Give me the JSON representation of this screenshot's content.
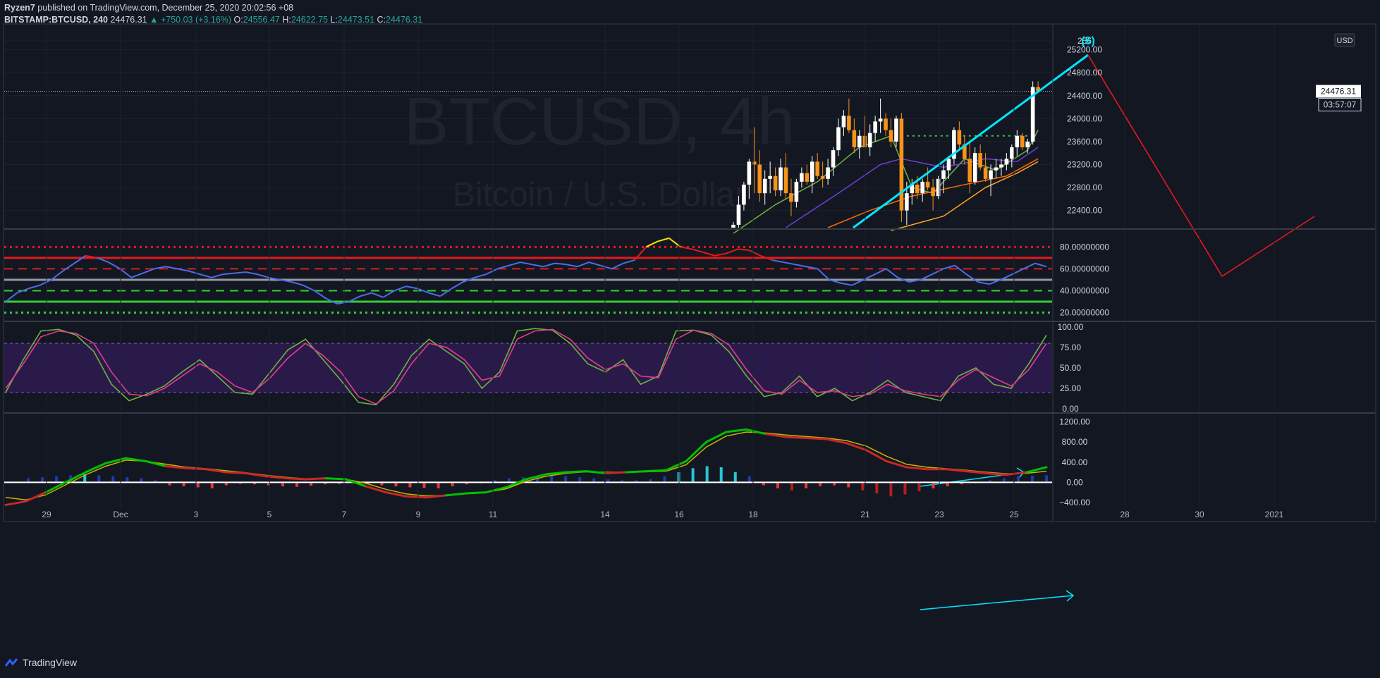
{
  "header": {
    "publisher": "Ryzen7",
    "published_text": "published on TradingView.com, December 25, 2020 20:02:56 +08",
    "symbol": "BITSTAMP:BTCUSD, 240",
    "last": "24476.31",
    "change": "▲ +750.03 (+3.16%)",
    "o_label": "O:",
    "o": "24556.47",
    "h_label": "H:",
    "h": "24622.75",
    "l_label": "L:",
    "l": "24473.51",
    "c_label": "C:",
    "c": "24476.31"
  },
  "watermark": {
    "symbol": "BTCUSD, 4h",
    "name": "Bitcoin / U.S. Dollar"
  },
  "footer": {
    "brand": "TradingView"
  },
  "colors": {
    "background": "#131722",
    "grid": "#1e222d",
    "bull_candle": "#ffffff",
    "bear_candle": "#f7931a",
    "wave_line": "#00e5ff",
    "projection": "#e31a1c",
    "rsi_line": "#4a6ee8",
    "stoch_k": "#6db33f",
    "stoch_d": "#e23c8e",
    "macd_line": "#00c000",
    "signal_line": "#c8b400"
  },
  "x_axis": {
    "labels": [
      "29",
      "Dec",
      "3",
      "5",
      "7",
      "9",
      "11",
      "14",
      "16",
      "18",
      "21",
      "23",
      "25",
      "28",
      "30",
      "2021"
    ]
  },
  "chart_data": [
    {
      "type": "candlestick",
      "title": "BTCUSD, 4h",
      "ylim": [
        22100,
        25650
      ],
      "price_scale_currency": "USD",
      "y_ticks": [
        "256",
        "25200.00",
        "24800.00",
        "24400.00",
        "24000.00",
        "23600.00",
        "23200.00",
        "22800.00",
        "22400.00"
      ],
      "last_price_label": "24476.31",
      "countdown_label": "03:57:07",
      "wave_label": "(5)",
      "candles": [
        [
          22100,
          22200,
          21800,
          22150
        ],
        [
          22150,
          22650,
          22100,
          22500
        ],
        [
          22500,
          22900,
          22400,
          22850
        ],
        [
          22850,
          23300,
          22600,
          23250
        ],
        [
          23250,
          23850,
          22700,
          23200
        ],
        [
          23200,
          23450,
          22550,
          22700
        ],
        [
          22700,
          23100,
          22500,
          22950
        ],
        [
          22950,
          23250,
          22700,
          23000
        ],
        [
          23000,
          23150,
          22650,
          22750
        ],
        [
          22750,
          23300,
          22650,
          23150
        ],
        [
          23150,
          23400,
          22600,
          22700
        ],
        [
          22700,
          22950,
          22300,
          22550
        ],
        [
          22550,
          22950,
          22450,
          22900
        ],
        [
          22900,
          23150,
          22800,
          23050
        ],
        [
          23050,
          23200,
          22850,
          22900
        ],
        [
          22900,
          23350,
          22700,
          23250
        ],
        [
          23250,
          23400,
          22950,
          23000
        ],
        [
          23000,
          23250,
          22800,
          22950
        ],
        [
          22950,
          23300,
          22850,
          23150
        ],
        [
          23150,
          23500,
          23000,
          23450
        ],
        [
          23450,
          24000,
          23350,
          23850
        ],
        [
          23850,
          24150,
          23700,
          24050
        ],
        [
          24050,
          24350,
          23750,
          23800
        ],
        [
          23800,
          24000,
          23400,
          23500
        ],
        [
          23500,
          23800,
          23300,
          23700
        ],
        [
          23700,
          24050,
          23500,
          23500
        ],
        [
          23500,
          23900,
          23350,
          23750
        ],
        [
          23750,
          24050,
          23600,
          23950
        ],
        [
          23950,
          24350,
          23750,
          24000
        ],
        [
          24000,
          24100,
          23700,
          23800
        ],
        [
          23800,
          24000,
          23500,
          23600
        ],
        [
          23600,
          24050,
          23500,
          24000
        ],
        [
          24000,
          24100,
          22200,
          22400
        ],
        [
          22400,
          22900,
          22150,
          22700
        ],
        [
          22700,
          22950,
          22500,
          22850
        ],
        [
          22850,
          23000,
          22600,
          22700
        ],
        [
          22700,
          22950,
          22550,
          22900
        ],
        [
          22900,
          23150,
          22750,
          22800
        ],
        [
          22800,
          22950,
          22400,
          22650
        ],
        [
          22650,
          23000,
          22600,
          22950
        ],
        [
          22950,
          23200,
          22700,
          23100
        ],
        [
          23100,
          23350,
          22950,
          23300
        ],
        [
          23300,
          23850,
          23200,
          23800
        ],
        [
          23800,
          23950,
          23450,
          23550
        ],
        [
          23550,
          23700,
          23200,
          23300
        ],
        [
          23300,
          23600,
          22700,
          22900
        ],
        [
          22900,
          23500,
          22850,
          23400
        ],
        [
          23400,
          23550,
          23100,
          23150
        ],
        [
          23150,
          23400,
          22900,
          22950
        ],
        [
          22950,
          23200,
          22650,
          23100
        ],
        [
          23100,
          23300,
          22950,
          23150
        ],
        [
          23150,
          23300,
          23000,
          23200
        ],
        [
          23200,
          23400,
          23100,
          23300
        ],
        [
          23300,
          23550,
          23150,
          23500
        ],
        [
          23500,
          23800,
          23350,
          23700
        ],
        [
          23700,
          23750,
          23450,
          23500
        ],
        [
          23500,
          23650,
          23400,
          23600
        ],
        [
          23600,
          24650,
          23550,
          24550
        ],
        [
          24550,
          24650,
          24450,
          24480
        ]
      ],
      "series": [
        {
          "name": "",
          "color": "#6db33f",
          "points": [
            [
              0,
              22000
            ],
            [
              8,
              22500
            ],
            [
              16,
              22900
            ],
            [
              24,
              23500
            ],
            [
              30,
              23700
            ],
            [
              34,
              22800
            ],
            [
              38,
              22700
            ],
            [
              44,
              23300
            ],
            [
              50,
              23100
            ],
            [
              56,
              23450
            ],
            [
              58,
              23800
            ]
          ]
        },
        {
          "name": "",
          "color": "#6a3fd6",
          "points": [
            [
              10,
              22100
            ],
            [
              20,
              22700
            ],
            [
              28,
              23200
            ],
            [
              32,
              23300
            ],
            [
              40,
              23150
            ],
            [
              48,
              23300
            ],
            [
              54,
              23250
            ],
            [
              58,
              23500
            ]
          ]
        },
        {
          "name": "",
          "color": "#ff6a00",
          "points": [
            [
              18,
              22100
            ],
            [
              26,
              22400
            ],
            [
              34,
              22650
            ],
            [
              44,
              22850
            ],
            [
              52,
              23000
            ],
            [
              58,
              23300
            ]
          ]
        },
        {
          "name": "",
          "color": "#ffa726",
          "points": [
            [
              30,
              22050
            ],
            [
              40,
              22300
            ],
            [
              48,
              22800
            ],
            [
              54,
              23050
            ],
            [
              58,
              23250
            ]
          ]
        }
      ],
      "dotted_level": 23700
    },
    {
      "type": "line",
      "ylim": [
        12,
        95
      ],
      "y_ticks": [
        "80.00000000",
        "60.00000000",
        "40.00000000",
        "20.00000000"
      ],
      "levels": [
        80,
        70,
        60,
        50,
        40,
        30,
        20
      ],
      "series": [
        {
          "name": "",
          "values": [
            30,
            38,
            42,
            45,
            50,
            58,
            65,
            72,
            70,
            66,
            60,
            52,
            56,
            60,
            62,
            60,
            58,
            55,
            52,
            55,
            56,
            57,
            55,
            52,
            50,
            48,
            45,
            40,
            33,
            28,
            30,
            35,
            38,
            34,
            40,
            44,
            42,
            38,
            35,
            42,
            48,
            52,
            55,
            60,
            63,
            66,
            64,
            62,
            65,
            64,
            62,
            66,
            63,
            60,
            65,
            68,
            80,
            85,
            88,
            80,
            78,
            75,
            72,
            74,
            78,
            77,
            72,
            68,
            66,
            64,
            62,
            60,
            50,
            47,
            45,
            50,
            55,
            60,
            52,
            48,
            50,
            55,
            60,
            63,
            55,
            48,
            46,
            50,
            55,
            60,
            65,
            62
          ]
        }
      ]
    },
    {
      "type": "line",
      "ylim": [
        -5,
        105
      ],
      "y_ticks": [
        "100.00",
        "75.00",
        "50.00",
        "25.00",
        "0.00"
      ],
      "band": [
        20,
        80
      ],
      "series": [
        {
          "name": "",
          "values": [
            20,
            60,
            95,
            97,
            90,
            70,
            30,
            10,
            18,
            28,
            45,
            60,
            40,
            20,
            18,
            45,
            72,
            85,
            60,
            35,
            8,
            5,
            30,
            65,
            85,
            70,
            55,
            25,
            45,
            95,
            98,
            96,
            80,
            55,
            45,
            60,
            30,
            40,
            95,
            96,
            90,
            70,
            40,
            15,
            20,
            40,
            15,
            25,
            10,
            20,
            35,
            20,
            15,
            10,
            40,
            50,
            30,
            25,
            55,
            90
          ]
        },
        {
          "name": "",
          "values": [
            25,
            55,
            88,
            95,
            92,
            80,
            45,
            18,
            16,
            25,
            40,
            55,
            45,
            28,
            20,
            38,
            62,
            80,
            65,
            45,
            15,
            6,
            22,
            55,
            80,
            75,
            60,
            35,
            40,
            85,
            95,
            97,
            85,
            62,
            48,
            55,
            40,
            38,
            85,
            96,
            92,
            78,
            48,
            22,
            18,
            35,
            20,
            22,
            15,
            18,
            30,
            22,
            18,
            15,
            35,
            48,
            38,
            28,
            48,
            80
          ]
        }
      ]
    },
    {
      "type": "bar",
      "ylim": [
        -500,
        1350
      ],
      "y_ticks": [
        "1200.00",
        "800.00",
        "400.00",
        "0.00",
        "−400.00"
      ],
      "histogram": [
        80,
        100,
        120,
        140,
        160,
        140,
        120,
        100,
        80,
        40,
        -60,
        -80,
        -100,
        -120,
        -60,
        -30,
        -40,
        -60,
        -80,
        -90,
        -70,
        -40,
        -30,
        -20,
        -40,
        -60,
        -80,
        -100,
        -110,
        -120,
        -80,
        -40,
        -20,
        40,
        80,
        100,
        120,
        140,
        120,
        100,
        80,
        60,
        40,
        40,
        60,
        120,
        200,
        280,
        320,
        300,
        200,
        120,
        -60,
        -120,
        -160,
        -120,
        -80,
        -60,
        -100,
        -160,
        -220,
        -280,
        -240,
        -180,
        -120,
        -80,
        -40,
        -20,
        40,
        80,
        120,
        130,
        140
      ],
      "series": [
        {
          "name": "",
          "values": [
            -450,
            -380,
            -200,
            0,
            200,
            380,
            480,
            420,
            320,
            280,
            260,
            200,
            180,
            120,
            80,
            60,
            80,
            60,
            -80,
            -200,
            -280,
            -300,
            -260,
            -220,
            -200,
            -100,
            60,
            160,
            200,
            220,
            180,
            200,
            220,
            240,
            420,
            800,
            1000,
            1050,
            960,
            900,
            880,
            860,
            780,
            640,
            420,
            300,
            260,
            260,
            220,
            180,
            150,
            200,
            300
          ]
        },
        {
          "name": "",
          "values": [
            -300,
            -350,
            -250,
            -50,
            150,
            320,
            440,
            420,
            360,
            300,
            270,
            230,
            190,
            140,
            100,
            70,
            70,
            60,
            -20,
            -140,
            -230,
            -270,
            -260,
            -230,
            -200,
            -130,
            20,
            120,
            180,
            210,
            200,
            200,
            210,
            220,
            350,
            700,
            920,
            1000,
            980,
            940,
            910,
            880,
            830,
            720,
            520,
            360,
            300,
            270,
            240,
            200,
            170,
            180,
            220
          ]
        }
      ]
    }
  ]
}
